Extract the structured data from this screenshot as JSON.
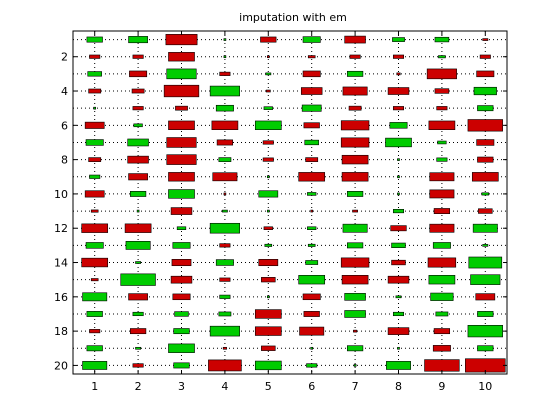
{
  "chart_data": {
    "type": "heatmap",
    "title": "imputation with em",
    "xlabel": "",
    "ylabel": "",
    "xlim": [
      0.5,
      10.5
    ],
    "ylim": [
      0.5,
      20.5
    ],
    "y_reversed": true,
    "grid": "dotted",
    "x_ticks": [
      1,
      2,
      3,
      4,
      5,
      6,
      7,
      8,
      9,
      10
    ],
    "y_ticks": [
      2,
      4,
      6,
      8,
      10,
      12,
      14,
      16,
      18,
      20
    ],
    "colors": {
      "positive": "#00cc00",
      "negative": "#cc0000",
      "grid": "#000000",
      "axis": "#000000"
    },
    "encoding": "box size shows magnitude, green positive, red negative",
    "values": [
      [
        0.45,
        0.55,
        -0.9,
        0.02,
        -0.45,
        0.5,
        -0.6,
        0.35,
        0.4,
        -0.15
      ],
      [
        -0.3,
        -0.3,
        -0.75,
        0.05,
        -0.02,
        -0.2,
        -0.3,
        -0.3,
        0.2,
        -0.3
      ],
      [
        0.4,
        -0.5,
        0.85,
        -0.3,
        0.15,
        -0.5,
        0.45,
        -0.1,
        -0.85,
        -0.5
      ],
      [
        -0.35,
        -0.35,
        -1.0,
        0.85,
        -0.12,
        -0.6,
        -0.7,
        -0.6,
        -0.4,
        0.65
      ],
      [
        0.02,
        -0.3,
        -0.35,
        0.5,
        0.25,
        0.55,
        -0.35,
        -0.3,
        -0.3,
        0.45
      ],
      [
        -0.55,
        0.25,
        -0.75,
        -0.75,
        0.75,
        -0.45,
        -0.8,
        0.5,
        -0.75,
        -1.0
      ],
      [
        0.5,
        0.6,
        -0.85,
        -0.45,
        -0.3,
        0.4,
        -0.8,
        0.75,
        0.25,
        -0.5
      ],
      [
        -0.35,
        -0.6,
        -0.85,
        0.35,
        -0.3,
        -0.35,
        -0.75,
        0.02,
        0.3,
        -0.45
      ],
      [
        0.3,
        -0.55,
        -0.75,
        -0.7,
        0.05,
        -0.75,
        -0.75,
        0.02,
        -0.7,
        -0.75
      ],
      [
        -0.55,
        0.45,
        0.75,
        -0.05,
        0.55,
        0.25,
        0.45,
        0.02,
        -0.7,
        0.2
      ],
      [
        -0.2,
        0.02,
        -0.6,
        0.15,
        0.02,
        -0.05,
        -0.15,
        0.3,
        -0.45,
        -0.4
      ],
      [
        -0.75,
        -0.75,
        0.25,
        0.85,
        -0.25,
        0.25,
        0.7,
        -0.45,
        -0.7,
        0.7
      ],
      [
        0.5,
        0.7,
        0.5,
        -0.3,
        0.2,
        0.2,
        0.45,
        0.4,
        0.5,
        0.15
      ],
      [
        -0.75,
        0.15,
        -0.55,
        0.5,
        -0.55,
        0.35,
        -0.8,
        -0.4,
        -0.8,
        0.95
      ],
      [
        -0.2,
        1.0,
        -0.6,
        -0.3,
        -0.4,
        0.75,
        -0.75,
        -0.6,
        0.75,
        0.85
      ],
      [
        0.7,
        -0.55,
        -0.5,
        0.3,
        0.05,
        -0.5,
        0.6,
        0.15,
        0.65,
        -0.55
      ],
      [
        0.45,
        0.3,
        0.4,
        0.35,
        -0.75,
        -0.45,
        0.6,
        0.3,
        0.35,
        0.45
      ],
      [
        -0.3,
        -0.45,
        0.45,
        0.85,
        -0.75,
        -0.7,
        -0.1,
        -0.6,
        -0.45,
        1.0
      ],
      [
        0.45,
        0.15,
        0.75,
        -0.1,
        -0.4,
        0.05,
        0.45,
        0.02,
        -0.5,
        0.45
      ],
      [
        0.7,
        -0.3,
        0.45,
        -0.95,
        0.75,
        0.3,
        0.02,
        0.7,
        -1.0,
        -1.15
      ]
    ]
  }
}
